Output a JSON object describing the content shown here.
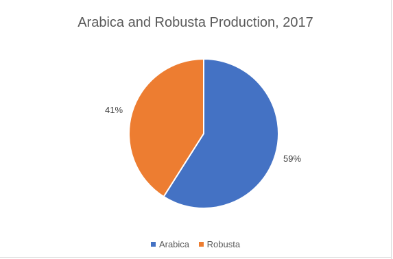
{
  "chart_data": {
    "type": "pie",
    "title": "Arabica and Robusta Production, 2017",
    "categories": [
      "Arabica",
      "Robusta"
    ],
    "values": [
      59,
      41
    ],
    "data_labels": [
      "59%",
      "41%"
    ],
    "colors": [
      "#4472c4",
      "#ed7d31"
    ],
    "legend_position": "bottom",
    "start_angle_deg": 0,
    "direction": "clockwise"
  }
}
